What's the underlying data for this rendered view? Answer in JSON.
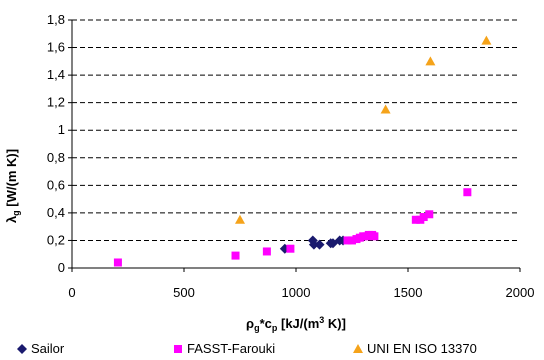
{
  "chart_data": {
    "type": "scatter",
    "title": "",
    "xlabel": {
      "base": "ρ",
      "sub1": "g",
      "mid": "*c",
      "sub2": "p",
      "pre": " [kJ/(m",
      "sup": "3",
      "post": " K)]"
    },
    "ylabel": {
      "base": "λ",
      "sub": "g",
      "rest": " [W/(m K)]"
    },
    "xlim": [
      0,
      2000
    ],
    "ylim": [
      0,
      1.8
    ],
    "x_ticks": [
      0,
      500,
      1000,
      1500,
      2000
    ],
    "x_tick_labels": [
      "0",
      "500",
      "1000",
      "1500",
      "2000"
    ],
    "y_ticks": [
      0,
      0.2,
      0.4,
      0.6,
      0.8,
      1.0,
      1.2,
      1.4,
      1.6,
      1.8
    ],
    "y_tick_labels": [
      "0",
      "0,2",
      "0,4",
      "0,6",
      "0,8",
      "1",
      "1,2",
      "1,4",
      "1,6",
      "1,8"
    ],
    "grid": "horizontal dashed",
    "legend_position": "bottom",
    "series": [
      {
        "name": "Sailor",
        "marker": "diamond",
        "color": "#1a1a6e",
        "points": [
          [
            950,
            0.14
          ],
          [
            1075,
            0.2
          ],
          [
            1080,
            0.17
          ],
          [
            1105,
            0.17
          ],
          [
            1155,
            0.18
          ],
          [
            1165,
            0.18
          ],
          [
            1195,
            0.2
          ],
          [
            1210,
            0.2
          ]
        ]
      },
      {
        "name": "FASST-Farouki",
        "marker": "square",
        "color": "#ff00ff",
        "points": [
          [
            205,
            0.04
          ],
          [
            730,
            0.09
          ],
          [
            870,
            0.12
          ],
          [
            975,
            0.14
          ],
          [
            1230,
            0.2
          ],
          [
            1250,
            0.2
          ],
          [
            1270,
            0.21
          ],
          [
            1285,
            0.22
          ],
          [
            1300,
            0.23
          ],
          [
            1315,
            0.23
          ],
          [
            1325,
            0.24
          ],
          [
            1340,
            0.24
          ],
          [
            1350,
            0.23
          ],
          [
            1535,
            0.35
          ],
          [
            1555,
            0.35
          ],
          [
            1570,
            0.37
          ],
          [
            1595,
            0.39
          ],
          [
            1765,
            0.55
          ]
        ]
      },
      {
        "name": "UNI EN ISO 13370",
        "marker": "triangle",
        "color": "#f5a31a",
        "points": [
          [
            750,
            0.35
          ],
          [
            1400,
            1.15
          ],
          [
            1600,
            1.5
          ],
          [
            1850,
            1.65
          ]
        ]
      }
    ]
  }
}
